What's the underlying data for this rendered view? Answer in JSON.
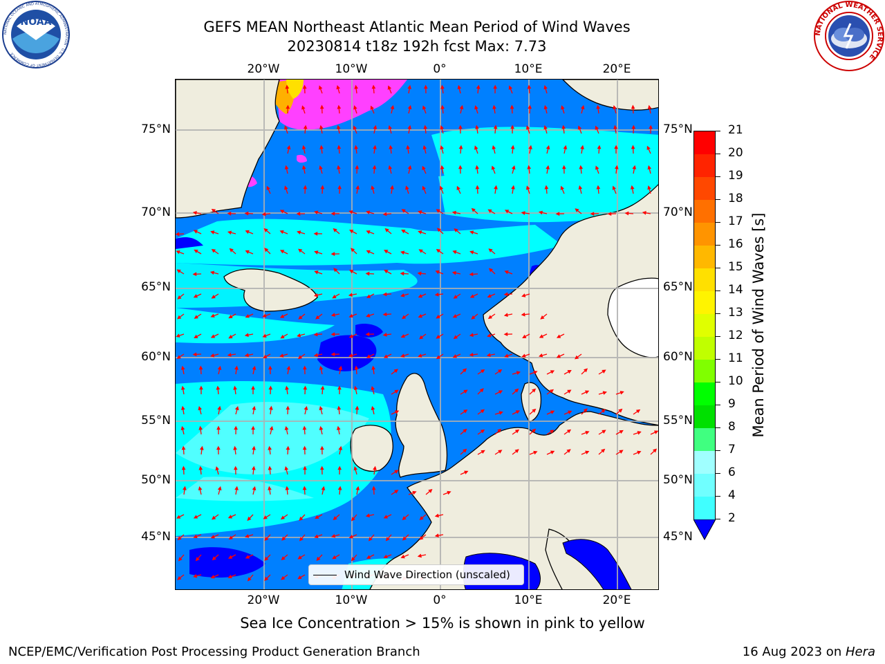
{
  "title_line1": "GEFS MEAN Northeast Atlantic Mean Period of Wind Waves",
  "title_line2": "20230814 t18z 192h fcst   Max: 7.73",
  "map": {
    "lon_labels_top": [
      "20°W",
      "10°W",
      "0°",
      "10°E",
      "20°E"
    ],
    "lon_labels_bottom": [
      "20°W",
      "10°W",
      "0°",
      "10°E",
      "20°E"
    ],
    "lat_labels_left": [
      "75°N",
      "70°N",
      "65°N",
      "60°N",
      "55°N",
      "50°N",
      "45°N"
    ],
    "lat_labels_right": [
      "75°N",
      "70°N",
      "65°N",
      "60°N",
      "55°N",
      "50°N",
      "45°N"
    ],
    "legend_label": "Wind Wave Direction (unscaled)",
    "colors": {
      "land": "#efedde",
      "ocean_low": "#0080ff",
      "ocean_mid": "#00ffff",
      "ocean_min": "#0000ff",
      "ice": "#ff40ff",
      "ice_high": "#ffb000",
      "arrow": "#ff0000",
      "grid": "#b0b0b0"
    }
  },
  "colorbar": {
    "label": "Mean Period of Wind Waves [s]",
    "ticks": [
      "21",
      "20",
      "19",
      "18",
      "17",
      "16",
      "15",
      "14",
      "13",
      "12",
      "11",
      "10",
      "9",
      "8",
      "7",
      "6",
      "4",
      "2"
    ],
    "colors": [
      "#ff0000",
      "#ff2400",
      "#ff4800",
      "#ff7000",
      "#ff9400",
      "#ffb800",
      "#ffe000",
      "#fff400",
      "#e0ff00",
      "#c0ff00",
      "#80ff00",
      "#00ff00",
      "#00e000",
      "#40ff80",
      "#a0ffff",
      "#70ffff",
      "#40ffff",
      "#00ffff",
      "#0080ff"
    ],
    "extend_color": "#0000ff"
  },
  "subtitle": "Sea Ice Concentration > 15% is shown in pink to yellow",
  "footer_left": "NCEP/EMC/Verification Post Processing Product Generation Branch",
  "footer_right_date": "16 Aug 2023 on ",
  "footer_right_host": "Hera",
  "logos": {
    "noaa_text": "NOAA",
    "noaa_ring": "NATIONAL OCEANIC AND ATMOSPHERIC ADMINISTRATION · U.S. DEPARTMENT OF COMMERCE",
    "nws_ring": "NATIONAL WEATHER SERVICE"
  }
}
